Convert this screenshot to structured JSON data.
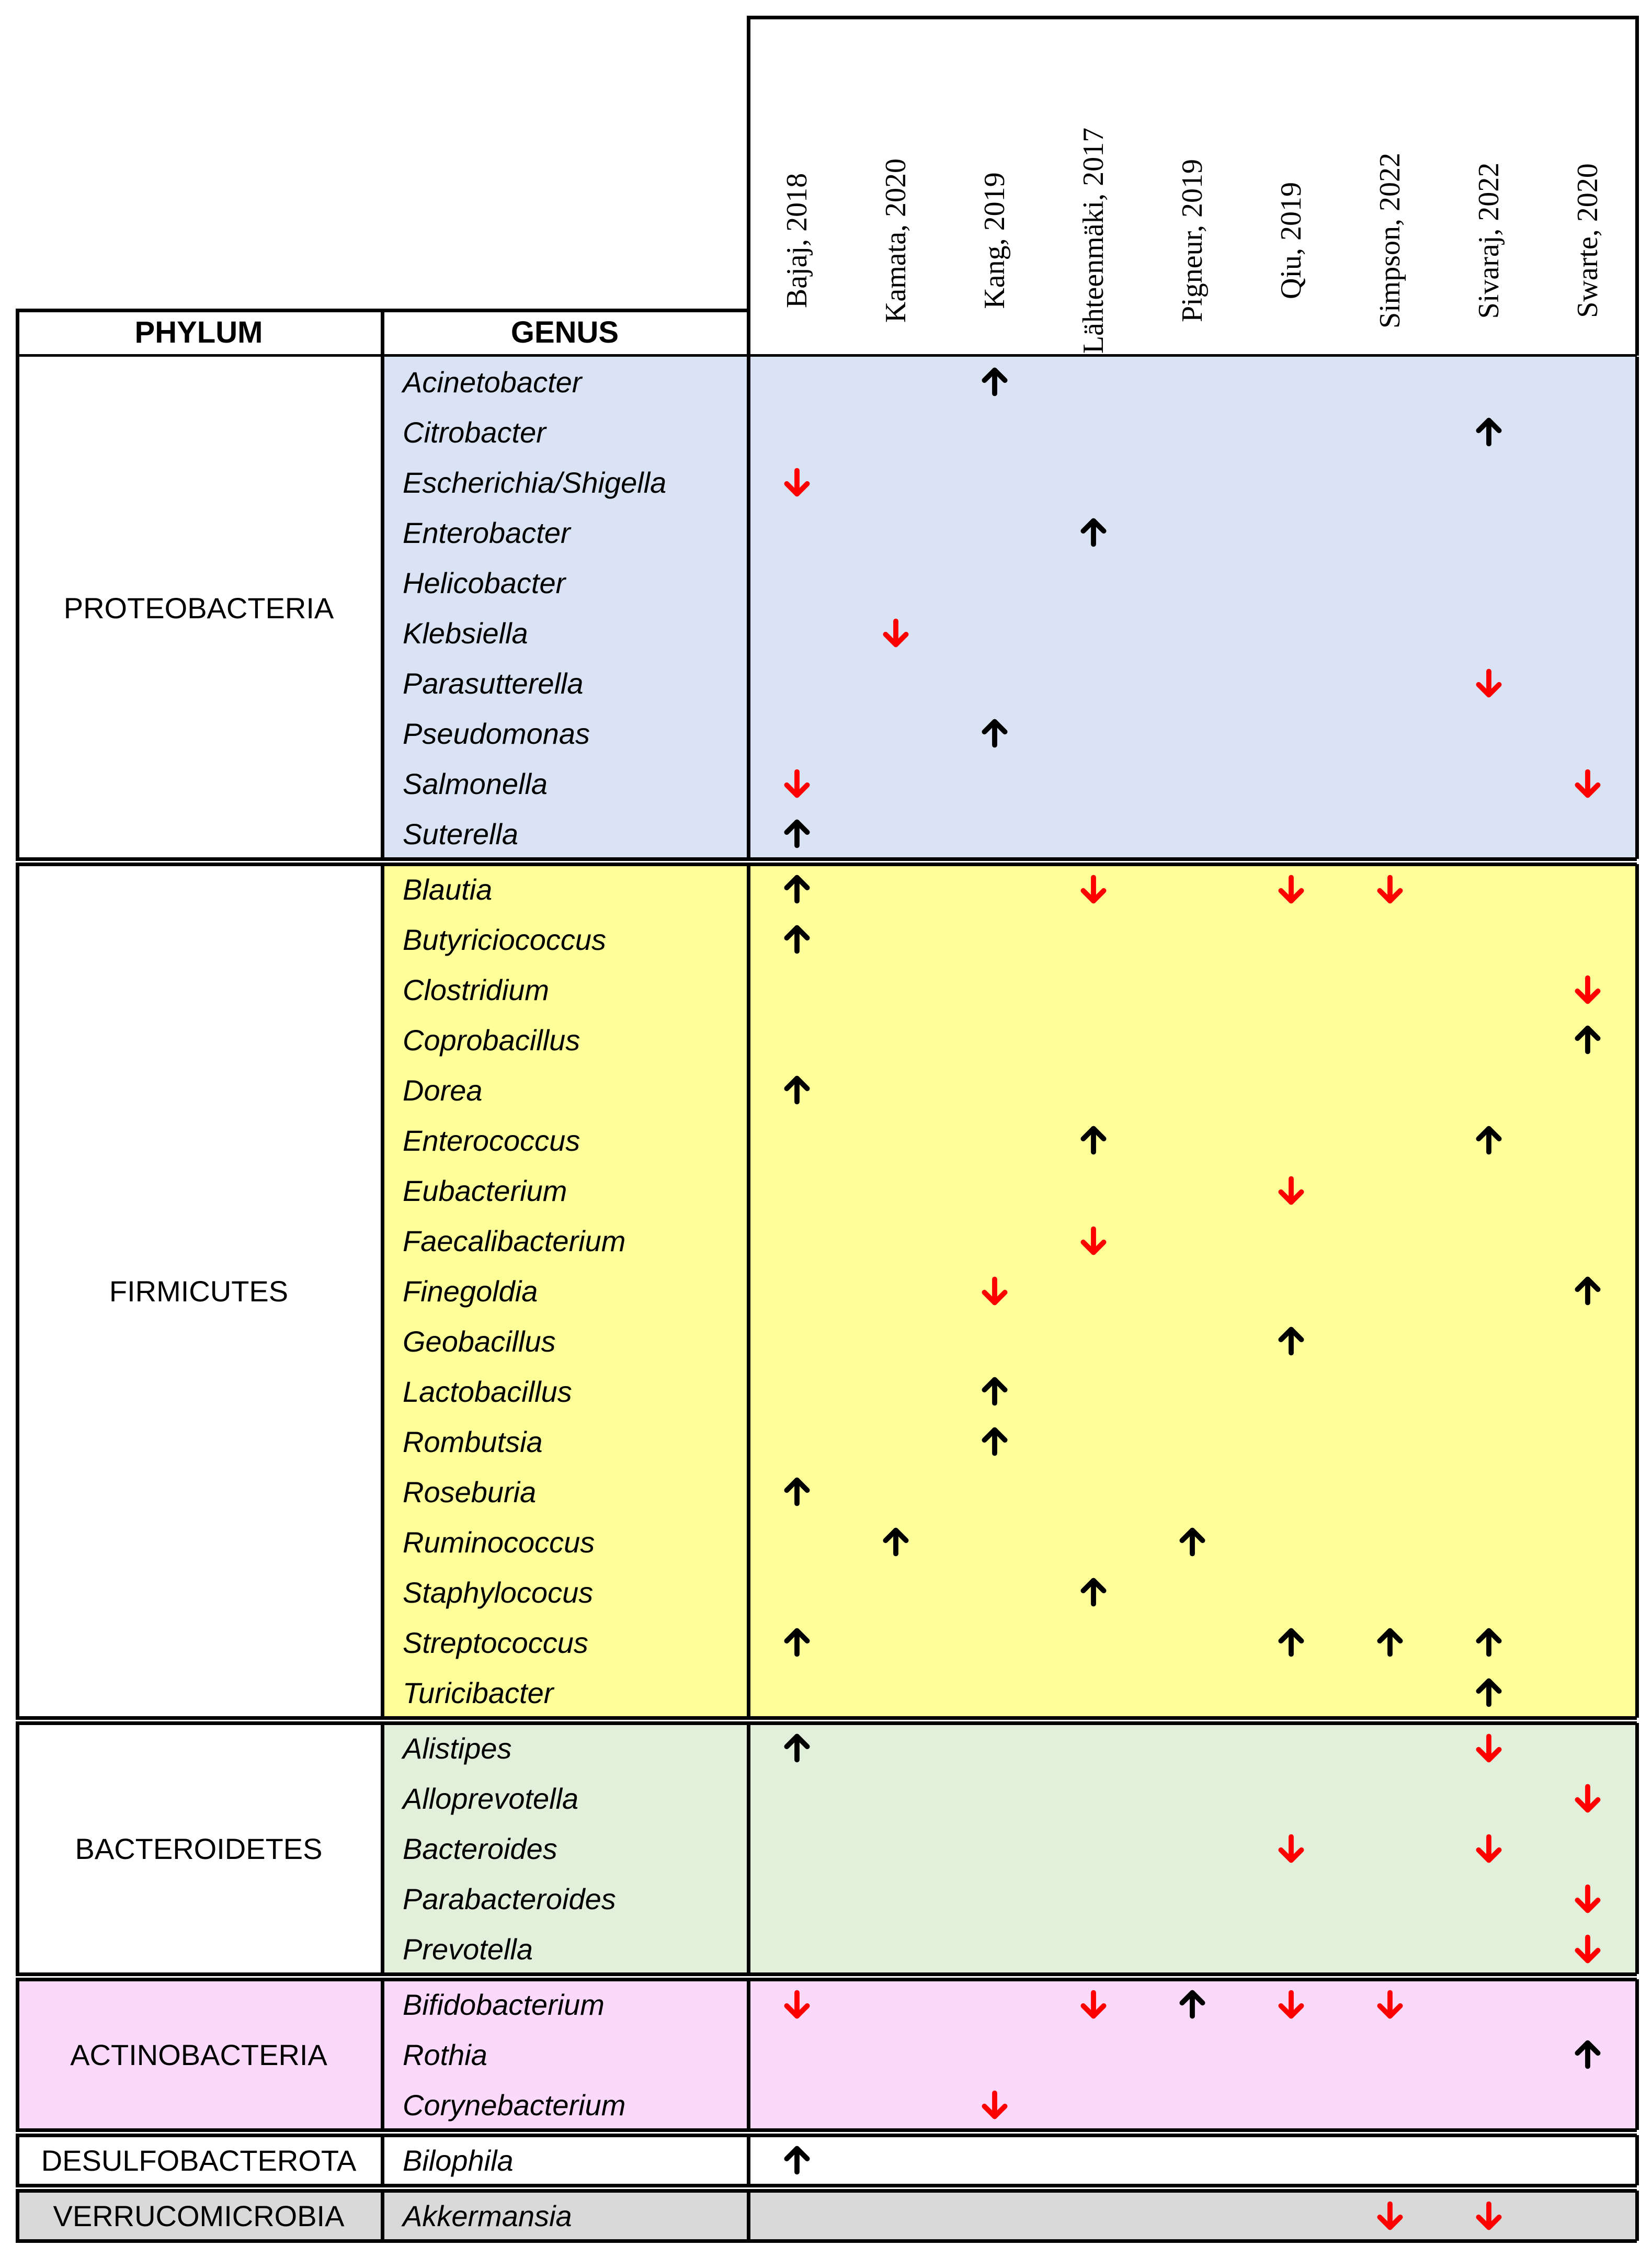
{
  "header": {
    "phylum_label": "PHYLUM",
    "genus_label": "GENUS"
  },
  "studies": [
    "Bajaj, 2018",
    "Kamata, 2020",
    "Kang, 2019",
    "Lähteenmäki, 2017",
    "Pigneur, 2019",
    "Qiu, 2019",
    "Simpson, 2022",
    "Sivaraj, 2022",
    "Swarte, 2020"
  ],
  "colors": {
    "up": "#000000",
    "down": "#ff0000",
    "proteobacteria": "#dae3f3",
    "firmicutes": "#ffff99",
    "bacteroidetes": "#e2efda",
    "actinobacteria": "#fbd9fb",
    "desulfobacterota": "#ffffff",
    "verrucomicrobia": "#d9d9d9"
  },
  "groups": [
    {
      "phylum": "PROTEOBACTERIA",
      "color_key": "proteobacteria",
      "genera": [
        {
          "name": "Acinetobacter",
          "changes": {
            "Kang, 2019": "up"
          }
        },
        {
          "name": "Citrobacter",
          "changes": {
            "Sivaraj, 2022": "up"
          }
        },
        {
          "name": "Escherichia/Shigella",
          "changes": {
            "Bajaj, 2018": "down"
          }
        },
        {
          "name": "Enterobacter",
          "changes": {
            "Lähteenmäki, 2017": "up"
          }
        },
        {
          "name": "Helicobacter",
          "changes": {}
        },
        {
          "name": "Klebsiella",
          "changes": {
            "Kamata, 2020": "down"
          }
        },
        {
          "name": "Parasutterella",
          "changes": {
            "Sivaraj, 2022": "down"
          }
        },
        {
          "name": "Pseudomonas",
          "changes": {
            "Kang, 2019": "up"
          }
        },
        {
          "name": "Salmonella",
          "changes": {
            "Bajaj, 2018": "down",
            "Swarte, 2020": "down"
          }
        },
        {
          "name": "Suterella",
          "changes": {
            "Bajaj, 2018": "up"
          }
        }
      ]
    },
    {
      "phylum": "FIRMICUTES",
      "color_key": "firmicutes",
      "genera": [
        {
          "name": "Blautia",
          "changes": {
            "Bajaj, 2018": "up",
            "Lähteenmäki, 2017": "down",
            "Qiu, 2019": "down",
            "Simpson, 2022": "down"
          }
        },
        {
          "name": "Butyriciococcus",
          "changes": {
            "Bajaj, 2018": "up"
          }
        },
        {
          "name": "Clostridium",
          "changes": {
            "Swarte, 2020": "down"
          }
        },
        {
          "name": "Coprobacillus",
          "changes": {
            "Swarte, 2020": "up"
          }
        },
        {
          "name": "Dorea",
          "changes": {
            "Bajaj, 2018": "up"
          }
        },
        {
          "name": "Enterococcus",
          "changes": {
            "Lähteenmäki, 2017": "up",
            "Sivaraj, 2022": "up"
          }
        },
        {
          "name": "Eubacterium",
          "changes": {
            "Qiu, 2019": "down"
          }
        },
        {
          "name": "Faecalibacterium",
          "changes": {
            "Lähteenmäki, 2017": "down"
          }
        },
        {
          "name": "Finegoldia",
          "changes": {
            "Kang, 2019": "down",
            "Swarte, 2020": "up"
          }
        },
        {
          "name": "Geobacillus",
          "changes": {
            "Qiu, 2019": "up"
          }
        },
        {
          "name": "Lactobacillus",
          "changes": {
            "Kang, 2019": "up"
          }
        },
        {
          "name": "Rombutsia",
          "changes": {
            "Kang, 2019": "up"
          }
        },
        {
          "name": "Roseburia",
          "changes": {
            "Bajaj, 2018": "up"
          }
        },
        {
          "name": "Ruminococcus",
          "changes": {
            "Kamata, 2020": "up",
            "Pigneur, 2019": "up"
          }
        },
        {
          "name": "Staphylococus",
          "changes": {
            "Lähteenmäki, 2017": "up"
          }
        },
        {
          "name": "Streptococcus",
          "changes": {
            "Bajaj, 2018": "up",
            "Qiu, 2019": "up",
            "Simpson, 2022": "up",
            "Sivaraj, 2022": "up"
          }
        },
        {
          "name": "Turicibacter",
          "changes": {
            "Sivaraj, 2022": "up"
          }
        }
      ]
    },
    {
      "phylum": "BACTEROIDETES",
      "color_key": "bacteroidetes",
      "genera": [
        {
          "name": "Alistipes",
          "changes": {
            "Bajaj, 2018": "up",
            "Sivaraj, 2022": "down"
          }
        },
        {
          "name": "Alloprevotella",
          "changes": {
            "Swarte, 2020": "down"
          }
        },
        {
          "name": "Bacteroides",
          "changes": {
            "Qiu, 2019": "down",
            "Sivaraj, 2022": "down"
          }
        },
        {
          "name": "Parabacteroides",
          "changes": {
            "Swarte, 2020": "down"
          }
        },
        {
          "name": "Prevotella",
          "changes": {
            "Swarte, 2020": "down"
          }
        }
      ]
    },
    {
      "phylum": "ACTINOBACTERIA",
      "color_key": "actinobacteria",
      "genera": [
        {
          "name": "Bifidobacterium",
          "changes": {
            "Bajaj, 2018": "down",
            "Lähteenmäki, 2017": "down",
            "Pigneur, 2019": "up",
            "Qiu, 2019": "down",
            "Simpson, 2022": "down"
          }
        },
        {
          "name": "Rothia",
          "changes": {
            "Swarte, 2020": "up"
          }
        },
        {
          "name": "Corynebacterium",
          "changes": {
            "Kang, 2019": "down"
          }
        }
      ]
    },
    {
      "phylum": "DESULFOBACTEROTA",
      "color_key": "desulfobacterota",
      "genera": [
        {
          "name": "Bilophila",
          "changes": {
            "Bajaj, 2018": "up"
          }
        }
      ]
    },
    {
      "phylum": "VERRUCOMICROBIA",
      "color_key": "verrucomicrobia",
      "genera": [
        {
          "name": "Akkermansia",
          "changes": {
            "Simpson, 2022": "down",
            "Sivaraj, 2022": "down"
          }
        }
      ]
    }
  ]
}
